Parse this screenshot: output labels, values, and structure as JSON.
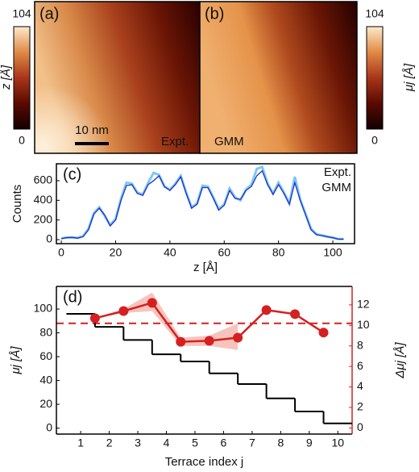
{
  "chart_data": [
    {
      "type": "image",
      "panel": "(a)",
      "annotation": "Expt.",
      "scalebar": "10 nm",
      "colorbar_label": "z [Å]",
      "clim": [
        0,
        104
      ],
      "cticks": [
        0,
        104
      ]
    },
    {
      "type": "image",
      "panel": "(b)",
      "annotation": "GMM",
      "colorbar_label": "μj [Å]",
      "clim": [
        0,
        104
      ],
      "cticks": [
        0,
        104
      ]
    },
    {
      "type": "line",
      "panel": "(c)",
      "xlabel": "z [Å]",
      "ylabel": "Counts",
      "x": [
        0,
        2,
        4,
        6,
        8,
        10,
        12,
        14,
        16,
        18,
        20,
        22,
        24,
        26,
        28,
        30,
        32,
        34,
        36,
        38,
        40,
        42,
        44,
        46,
        48,
        50,
        52,
        54,
        56,
        58,
        60,
        62,
        64,
        66,
        68,
        70,
        72,
        74,
        76,
        78,
        80,
        82,
        84,
        86,
        88,
        90,
        92,
        94,
        96,
        98,
        100,
        102,
        104
      ],
      "series": [
        {
          "name": "Expt.",
          "color": "#7ec8f0",
          "values": [
            12,
            22,
            24,
            18,
            35,
            110,
            270,
            330,
            240,
            150,
            210,
            420,
            580,
            570,
            480,
            460,
            580,
            680,
            660,
            540,
            510,
            570,
            650,
            480,
            330,
            370,
            550,
            540,
            430,
            310,
            360,
            520,
            430,
            400,
            510,
            560,
            720,
            740,
            570,
            470,
            580,
            480,
            370,
            640,
            410,
            260,
            110,
            55,
            45,
            30,
            20,
            6,
            5
          ]
        },
        {
          "name": "GMM",
          "color": "#1f2fd0",
          "values": [
            10,
            20,
            22,
            15,
            30,
            100,
            260,
            320,
            250,
            140,
            200,
            400,
            550,
            560,
            470,
            450,
            560,
            600,
            650,
            540,
            500,
            560,
            640,
            470,
            320,
            360,
            530,
            530,
            420,
            300,
            350,
            500,
            420,
            410,
            500,
            540,
            650,
            700,
            560,
            460,
            560,
            470,
            360,
            580,
            400,
            250,
            100,
            50,
            40,
            30,
            20,
            5,
            5
          ]
        }
      ],
      "xlim": [
        -1.8,
        108
      ],
      "xticks": [
        0,
        20,
        40,
        60,
        80,
        100
      ],
      "ylim": [
        -41,
        772
      ],
      "yticks": [
        0,
        200,
        400,
        600
      ]
    },
    {
      "type": "step",
      "panel": "(d)",
      "xlabel": "Terrace index j",
      "ylabel": "μj [Å]",
      "y2label": "Δμj [Å]",
      "series": [
        {
          "color": "#000000",
          "x": [
            1,
            2,
            3,
            4,
            5,
            6,
            7,
            8,
            9,
            10
          ],
          "values": [
            96,
            85,
            74,
            62,
            56,
            46,
            37,
            25,
            14,
            4
          ]
        },
        {
          "color": "#d42020",
          "axis": "y2",
          "x": [
            1.5,
            2.5,
            3.5,
            4.5,
            5.5,
            6.5,
            7.5,
            8.5,
            9.5
          ],
          "values": [
            10.7,
            11.4,
            12.2,
            8.4,
            8.5,
            8.8,
            11.5,
            11.1,
            9.3
          ]
        }
      ],
      "band": {
        "color": "#f5b5ad",
        "x": [
          1.5,
          2.5,
          3.5,
          4.5,
          5.5,
          6.5
        ],
        "lower": [
          10.7,
          11.2,
          11.4,
          8.0,
          8.0,
          7.6
        ],
        "upper": [
          10.7,
          11.6,
          13.2,
          8.8,
          9.0,
          10.2
        ]
      },
      "hline": {
        "value": 10.2,
        "axis": "y2",
        "color": "#d42020"
      },
      "xlim": [
        0.15,
        10.5
      ],
      "xticks": [
        1,
        2,
        3,
        4,
        5,
        6,
        7,
        8,
        9,
        10
      ],
      "ylim": [
        -5,
        119
      ],
      "yticks": [
        0,
        20,
        40,
        60,
        80,
        100
      ],
      "y2lim": [
        -0.6,
        13.8
      ],
      "y2ticks": [
        0,
        2,
        4,
        6,
        8,
        10,
        12
      ]
    }
  ]
}
